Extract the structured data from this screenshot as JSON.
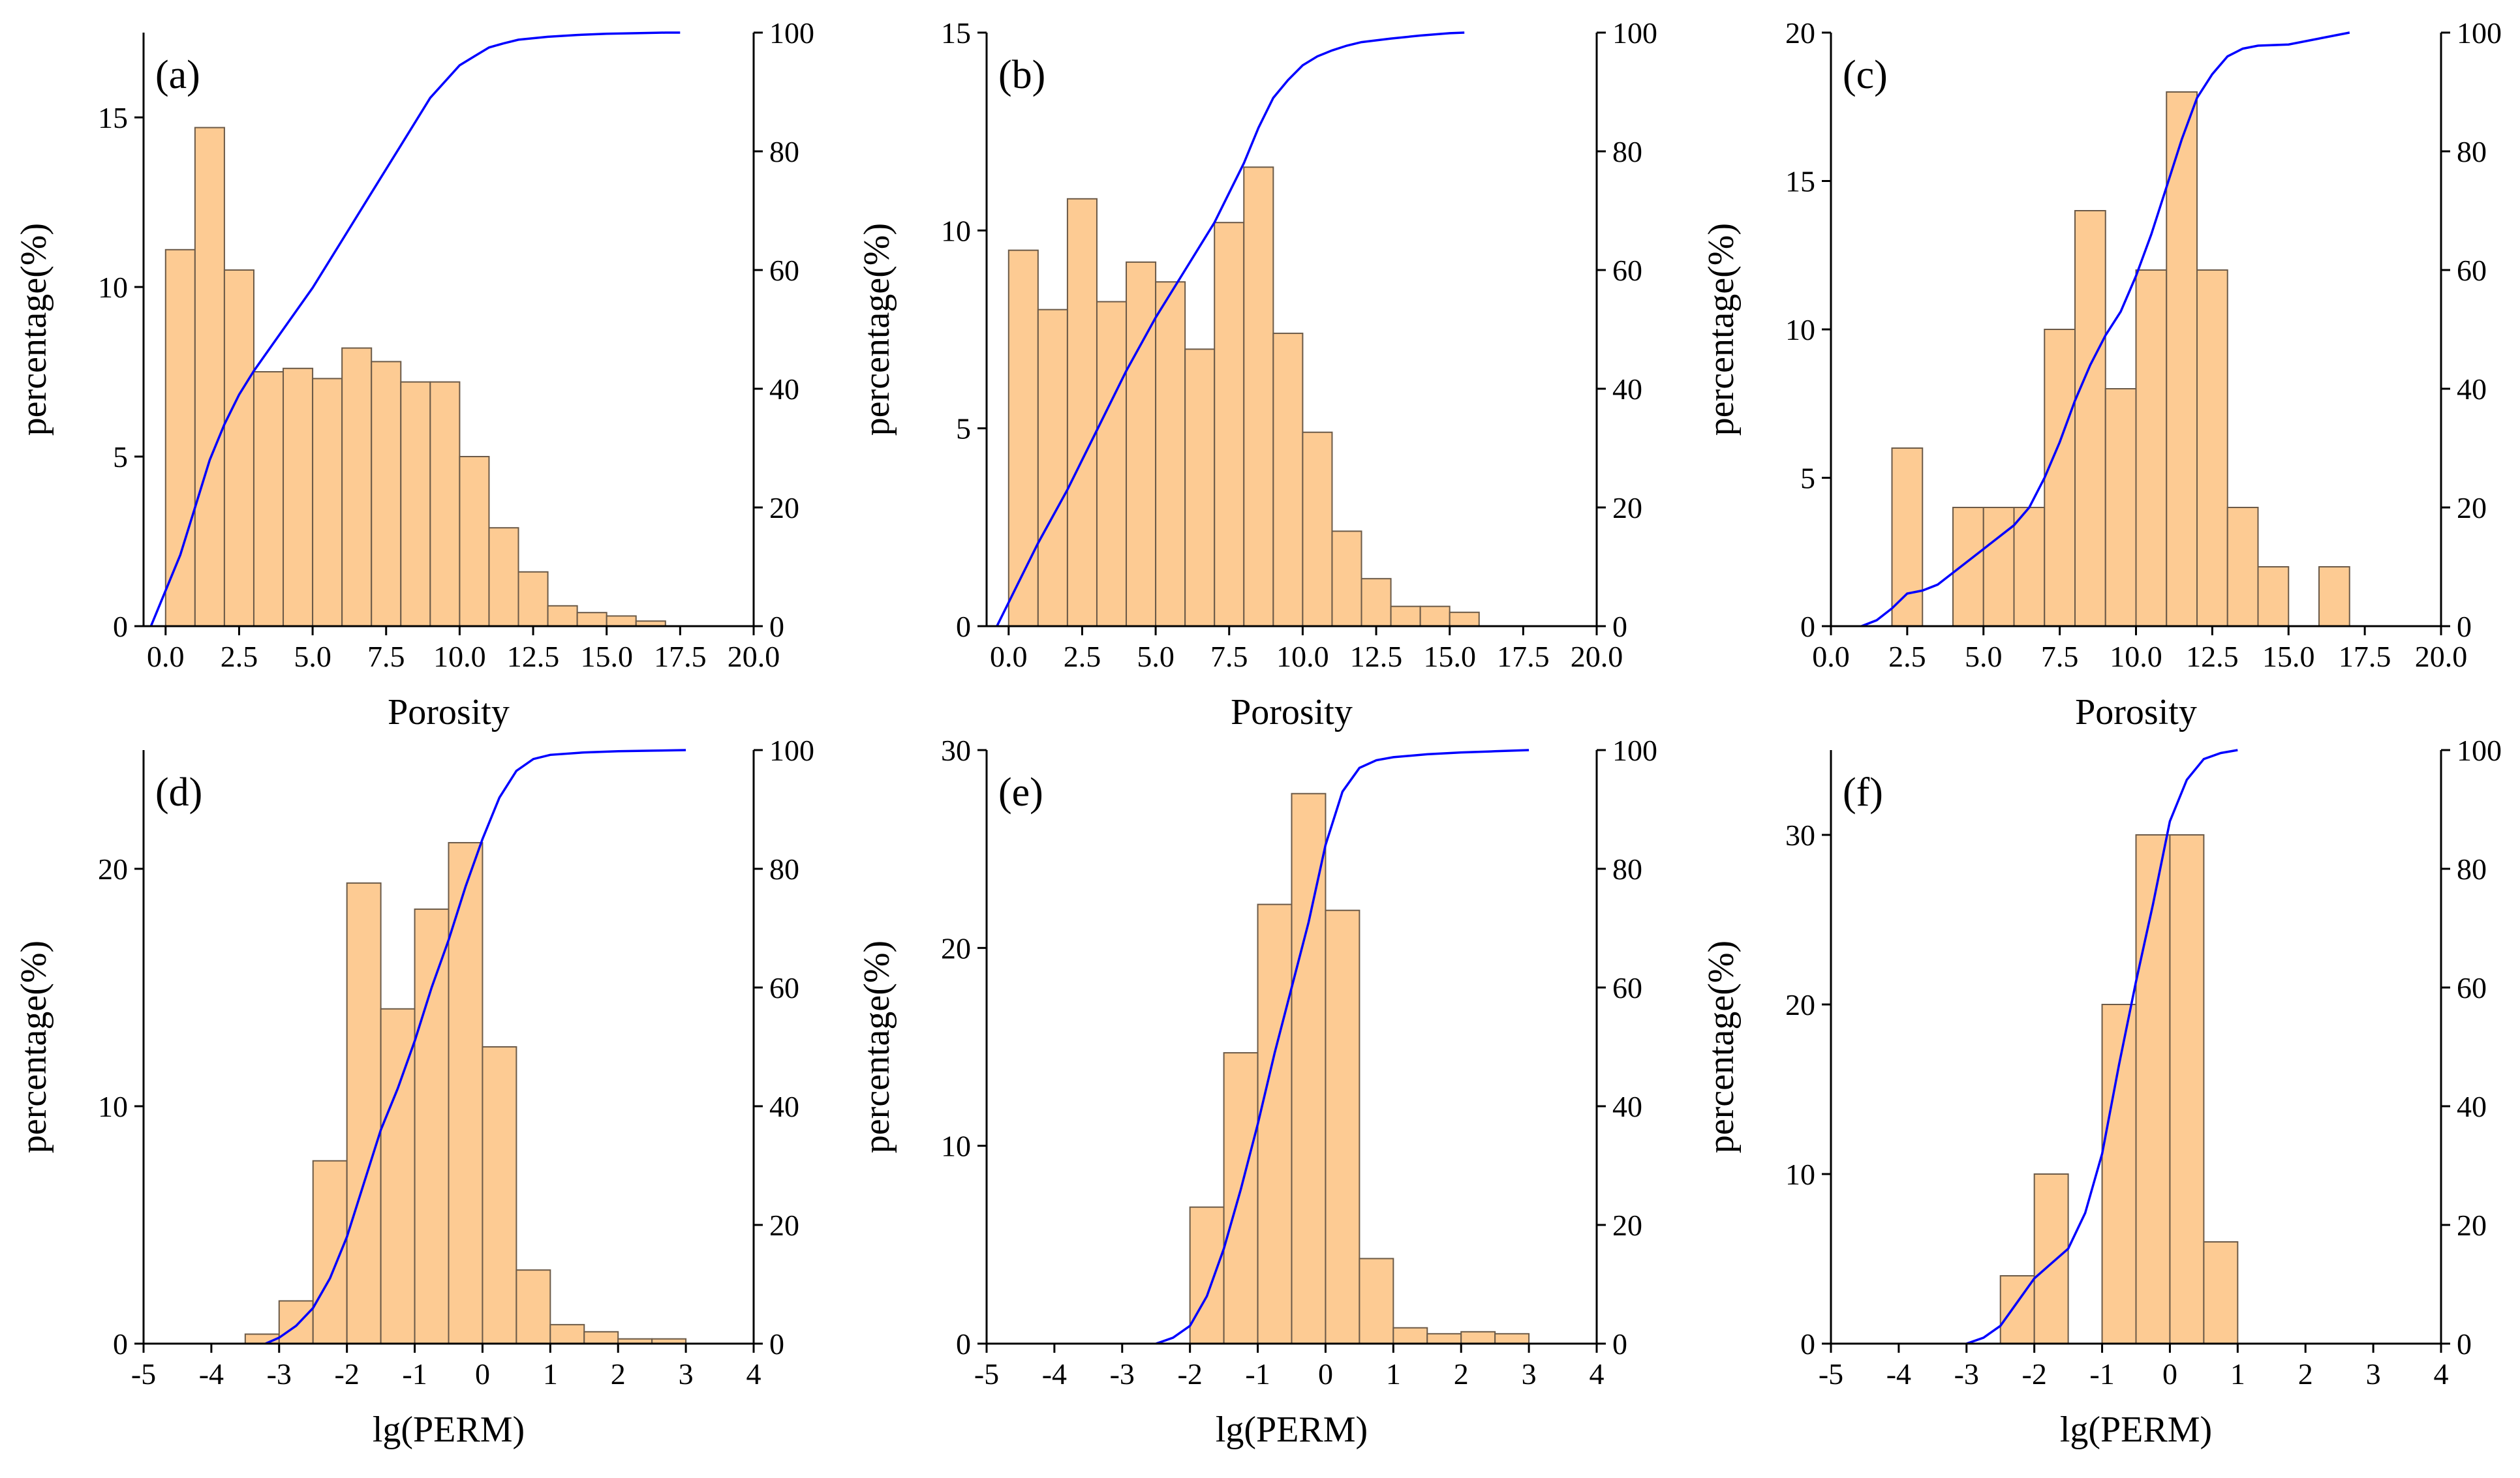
{
  "colors": {
    "bar_fill": "#fdcb93",
    "bar_edge": "#6b5a48",
    "cdf_line": "#0000ff",
    "axis": "#000000"
  },
  "y_right_ticks": [
    "0",
    "20",
    "40",
    "60",
    "80",
    "100"
  ],
  "chart_data": [
    {
      "id": "a",
      "type": "bar",
      "panel_label": "(a)",
      "title": "",
      "xlabel": "Porosity",
      "ylabel": "percentage(%)",
      "ylabel_right": "",
      "xlim": [
        -0.75,
        20
      ],
      "ylim": [
        0,
        17.5
      ],
      "y2lim": [
        0,
        100
      ],
      "x_ticks": [
        0,
        2.5,
        5,
        7.5,
        10,
        12.5,
        15,
        17.5,
        20
      ],
      "x_tick_labels": [
        "0.0",
        "2.5",
        "5.0",
        "7.5",
        "10.0",
        "12.5",
        "15.0",
        "17.5",
        "20.0"
      ],
      "y_ticks": [
        0,
        5,
        10,
        15
      ],
      "y_tick_labels": [
        "0",
        "5",
        "10",
        "15"
      ],
      "bin_start": 0,
      "bin_width": 1,
      "values": [
        11.1,
        14.7,
        10.5,
        7.5,
        7.6,
        7.3,
        8.2,
        7.8,
        7.2,
        7.2,
        5.0,
        2.9,
        1.6,
        0.6,
        0.4,
        0.3,
        0.15
      ],
      "cdf": {
        "x": [
          -0.5,
          0,
          0.5,
          1,
          1.5,
          2,
          2.5,
          3,
          4,
          5,
          6,
          7,
          8,
          9,
          10,
          10.5,
          11,
          11.5,
          12,
          13,
          14,
          15,
          16,
          17,
          17.5
        ],
        "y": [
          0,
          6,
          12,
          20,
          28,
          34,
          39,
          43,
          50,
          57,
          65,
          73,
          81,
          89,
          94.5,
          96,
          97.5,
          98.2,
          98.8,
          99.3,
          99.6,
          99.8,
          99.9,
          100,
          100
        ]
      }
    },
    {
      "id": "b",
      "type": "bar",
      "panel_label": "(b)",
      "title": "",
      "xlabel": "Porosity",
      "ylabel": "percentage(%)",
      "ylabel_right": "",
      "xlim": [
        -0.75,
        20
      ],
      "ylim": [
        0,
        15
      ],
      "y2lim": [
        0,
        100
      ],
      "x_ticks": [
        0,
        2.5,
        5,
        7.5,
        10,
        12.5,
        15,
        17.5,
        20
      ],
      "x_tick_labels": [
        "0.0",
        "2.5",
        "5.0",
        "7.5",
        "10.0",
        "12.5",
        "15.0",
        "17.5",
        "20.0"
      ],
      "y_ticks": [
        0,
        5,
        10,
        15
      ],
      "y_tick_labels": [
        "0",
        "5",
        "10",
        "15"
      ],
      "bin_start": 0,
      "bin_width": 1,
      "values": [
        9.5,
        8.0,
        10.8,
        8.2,
        9.2,
        8.7,
        7.0,
        10.2,
        11.6,
        7.4,
        4.9,
        2.4,
        1.2,
        0.5,
        0.5,
        0.35
      ],
      "cdf": {
        "x": [
          -0.4,
          0,
          0.5,
          1,
          2,
          2.5,
          3,
          4,
          5,
          6,
          6.5,
          7,
          7.5,
          8,
          8.5,
          9,
          9.5,
          10,
          10.5,
          11,
          11.5,
          12,
          13,
          14,
          15,
          15.5
        ],
        "y": [
          0,
          4,
          9,
          14,
          23,
          28,
          33,
          43,
          52,
          60,
          64,
          68,
          73,
          78,
          84,
          89,
          92,
          94.5,
          96,
          97,
          97.8,
          98.4,
          99,
          99.5,
          99.9,
          100
        ]
      }
    },
    {
      "id": "c",
      "type": "bar",
      "panel_label": "(c)",
      "title": "",
      "xlabel": "Porosity",
      "ylabel": "percentage(%)",
      "ylabel_right": "",
      "xlim": [
        0,
        20
      ],
      "ylim": [
        0,
        20
      ],
      "y2lim": [
        0,
        100
      ],
      "x_ticks": [
        0,
        2.5,
        5,
        7.5,
        10,
        12.5,
        15,
        17.5,
        20
      ],
      "x_tick_labels": [
        "0.0",
        "2.5",
        "5.0",
        "7.5",
        "10.0",
        "12.5",
        "15.0",
        "17.5",
        "20.0"
      ],
      "y_ticks": [
        0,
        5,
        10,
        15,
        20
      ],
      "y_tick_labels": [
        "0",
        "5",
        "10",
        "15",
        "20"
      ],
      "bin_start": 2,
      "bin_width": 1,
      "values": [
        6,
        0,
        4,
        4,
        4,
        10,
        14,
        8,
        12,
        18,
        12,
        4,
        2,
        0,
        2
      ],
      "cdf": {
        "x": [
          1,
          1.5,
          2,
          2.5,
          3,
          3.5,
          4,
          5,
          6,
          6.5,
          7,
          7.5,
          8,
          8.5,
          9,
          9.5,
          10,
          10.5,
          11,
          11.5,
          12,
          12.5,
          13,
          13.5,
          14,
          15,
          16,
          17,
          16.5
        ],
        "y": [
          0,
          1,
          3,
          5.5,
          6,
          7,
          9,
          13,
          17,
          20,
          25,
          31,
          38,
          44,
          49,
          53,
          59,
          66,
          74,
          82,
          89,
          93,
          96,
          97.3,
          97.8,
          98,
          99,
          100,
          99.5
        ]
      }
    },
    {
      "id": "d",
      "type": "bar",
      "panel_label": "(d)",
      "title": "",
      "xlabel": "lg(PERM)",
      "ylabel": "percentage(%)",
      "ylabel_right": "",
      "xlim": [
        -5,
        4
      ],
      "ylim": [
        0,
        25
      ],
      "y2lim": [
        0,
        100
      ],
      "x_ticks": [
        -5,
        -4,
        -3,
        -2,
        -1,
        0,
        1,
        2,
        3,
        4
      ],
      "x_tick_labels": [
        "-5",
        "-4",
        "-3",
        "-2",
        "-1",
        "0",
        "1",
        "2",
        "3",
        "4"
      ],
      "y_ticks": [
        0,
        10,
        20
      ],
      "y_tick_labels": [
        "0",
        "10",
        "20"
      ],
      "bin_start": -3.5,
      "bin_width": 0.5,
      "values": [
        0.4,
        1.8,
        7.7,
        19.4,
        14.1,
        18.3,
        21.1,
        12.5,
        3.1,
        0.8,
        0.5,
        0.2,
        0.2
      ],
      "cdf": {
        "x": [
          -3.2,
          -3,
          -2.75,
          -2.5,
          -2.25,
          -2,
          -1.75,
          -1.5,
          -1.25,
          -1,
          -0.75,
          -0.5,
          -0.25,
          0,
          0.25,
          0.5,
          0.75,
          1,
          1.5,
          2,
          2.5,
          3
        ],
        "y": [
          0,
          1,
          3,
          6,
          11,
          18,
          27,
          36,
          43,
          51,
          60,
          68,
          77,
          85,
          92,
          96.5,
          98.5,
          99.2,
          99.6,
          99.8,
          99.9,
          100
        ]
      }
    },
    {
      "id": "e",
      "type": "bar",
      "panel_label": "(e)",
      "title": "",
      "xlabel": "lg(PERM)",
      "ylabel": "percentage(%)",
      "ylabel_right": "",
      "xlim": [
        -5,
        4
      ],
      "ylim": [
        0,
        30
      ],
      "y2lim": [
        0,
        100
      ],
      "x_ticks": [
        -5,
        -4,
        -3,
        -2,
        -1,
        0,
        1,
        2,
        3,
        4
      ],
      "x_tick_labels": [
        "-5",
        "-4",
        "-3",
        "-2",
        "-1",
        "0",
        "1",
        "2",
        "3",
        "4"
      ],
      "y_ticks": [
        0,
        10,
        20,
        30
      ],
      "y_tick_labels": [
        "0",
        "10",
        "20",
        "30"
      ],
      "bin_start": -2,
      "bin_width": 0.5,
      "values": [
        6.9,
        14.7,
        22.2,
        27.8,
        21.9,
        4.3,
        0.8,
        0.5,
        0.6,
        0.5
      ],
      "cdf": {
        "x": [
          -2.5,
          -2.25,
          -2,
          -1.75,
          -1.5,
          -1.25,
          -1,
          -0.75,
          -0.5,
          -0.25,
          0,
          0.25,
          0.5,
          0.75,
          1,
          1.5,
          2,
          2.5,
          3
        ],
        "y": [
          0,
          1,
          3,
          8,
          16,
          26,
          37,
          49,
          60,
          71,
          84,
          93,
          97,
          98.3,
          98.8,
          99.3,
          99.6,
          99.8,
          100
        ]
      }
    },
    {
      "id": "f",
      "type": "bar",
      "panel_label": "(f)",
      "title": "",
      "xlabel": "lg(PERM)",
      "ylabel": "percentage(%)",
      "ylabel_right": "",
      "xlim": [
        -5,
        4
      ],
      "ylim": [
        0,
        35
      ],
      "y2lim": [
        0,
        100
      ],
      "x_ticks": [
        -5,
        -4,
        -3,
        -2,
        -1,
        0,
        1,
        2,
        3,
        4
      ],
      "x_tick_labels": [
        "-5",
        "-4",
        "-3",
        "-2",
        "-1",
        "0",
        "1",
        "2",
        "3",
        "4"
      ],
      "y_ticks": [
        0,
        10,
        20,
        30
      ],
      "y_tick_labels": [
        "0",
        "10",
        "20",
        "30"
      ],
      "bin_start": -2.5,
      "bin_width": 0.5,
      "values": [
        4,
        10,
        0,
        20,
        30,
        30,
        6
      ],
      "cdf": {
        "x": [
          -3,
          -2.75,
          -2.5,
          -2.25,
          -2,
          -1.75,
          -1.5,
          -1.25,
          -1,
          -0.75,
          -0.5,
          -0.25,
          0,
          0.25,
          0.5,
          0.75,
          1
        ],
        "y": [
          0,
          1,
          3,
          7,
          11,
          13.5,
          16,
          22,
          32,
          47,
          61,
          74,
          88,
          95,
          98.5,
          99.5,
          100
        ]
      }
    }
  ]
}
